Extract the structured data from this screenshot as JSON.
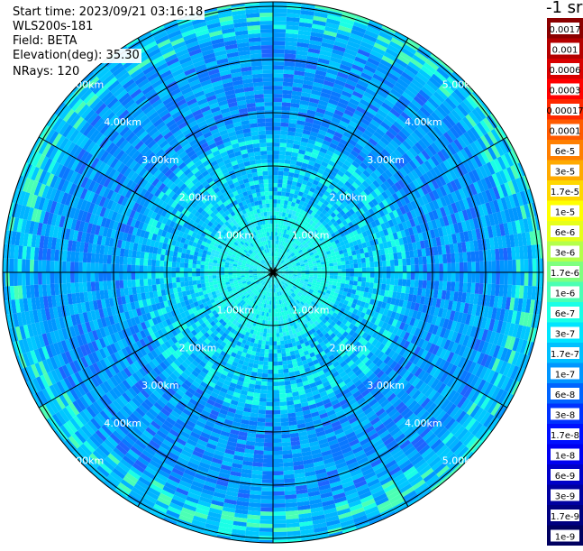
{
  "header": {
    "start_time": "Start time: 2023/09/21 03:16:18",
    "instrument": "WLS200s-181",
    "field": "Field: BETA",
    "elevation": "Elevation(deg): 35.30",
    "nrays": "NRays: 120"
  },
  "chart_data": {
    "type": "heatmap",
    "projection": "polar (PPI scan)",
    "range_rings_km": [
      1,
      2,
      3,
      4,
      5
    ],
    "ring_labels": [
      "1.00km",
      "2.00km",
      "3.00km",
      "4.00km",
      "5.00km"
    ],
    "radial_lines_every_deg": 30,
    "max_range_km": 6.8,
    "colorbar": {
      "title": "-1 sr",
      "labels": [
        "0.0017",
        "0.001",
        "0.0006",
        "0.0003",
        "0.00017",
        "0.0001",
        "6e-5",
        "3e-5",
        "1.7e-5",
        "1e-5",
        "6e-6",
        "3e-6",
        "1.7e-6",
        "1e-6",
        "6e-7",
        "3e-7",
        "1.7e-7",
        "1e-7",
        "6e-8",
        "3e-8",
        "1.7e-8",
        "1e-8",
        "6e-9",
        "3e-9",
        "1.7e-9",
        "1e-9"
      ],
      "colors": [
        "#8b0000",
        "#b40000",
        "#d80000",
        "#ff0000",
        "#ff2800",
        "#ff5a00",
        "#ff7f00",
        "#ffaa00",
        "#ffd700",
        "#ffff00",
        "#e6ff1a",
        "#b4ff4b",
        "#7fff7f",
        "#4bffb4",
        "#1affe6",
        "#00e5ff",
        "#00c0ff",
        "#0096ff",
        "#0064ff",
        "#0032ff",
        "#0010ff",
        "#0000f0",
        "#0000c8",
        "#0000a0",
        "#000080",
        "#000060"
      ]
    }
  }
}
